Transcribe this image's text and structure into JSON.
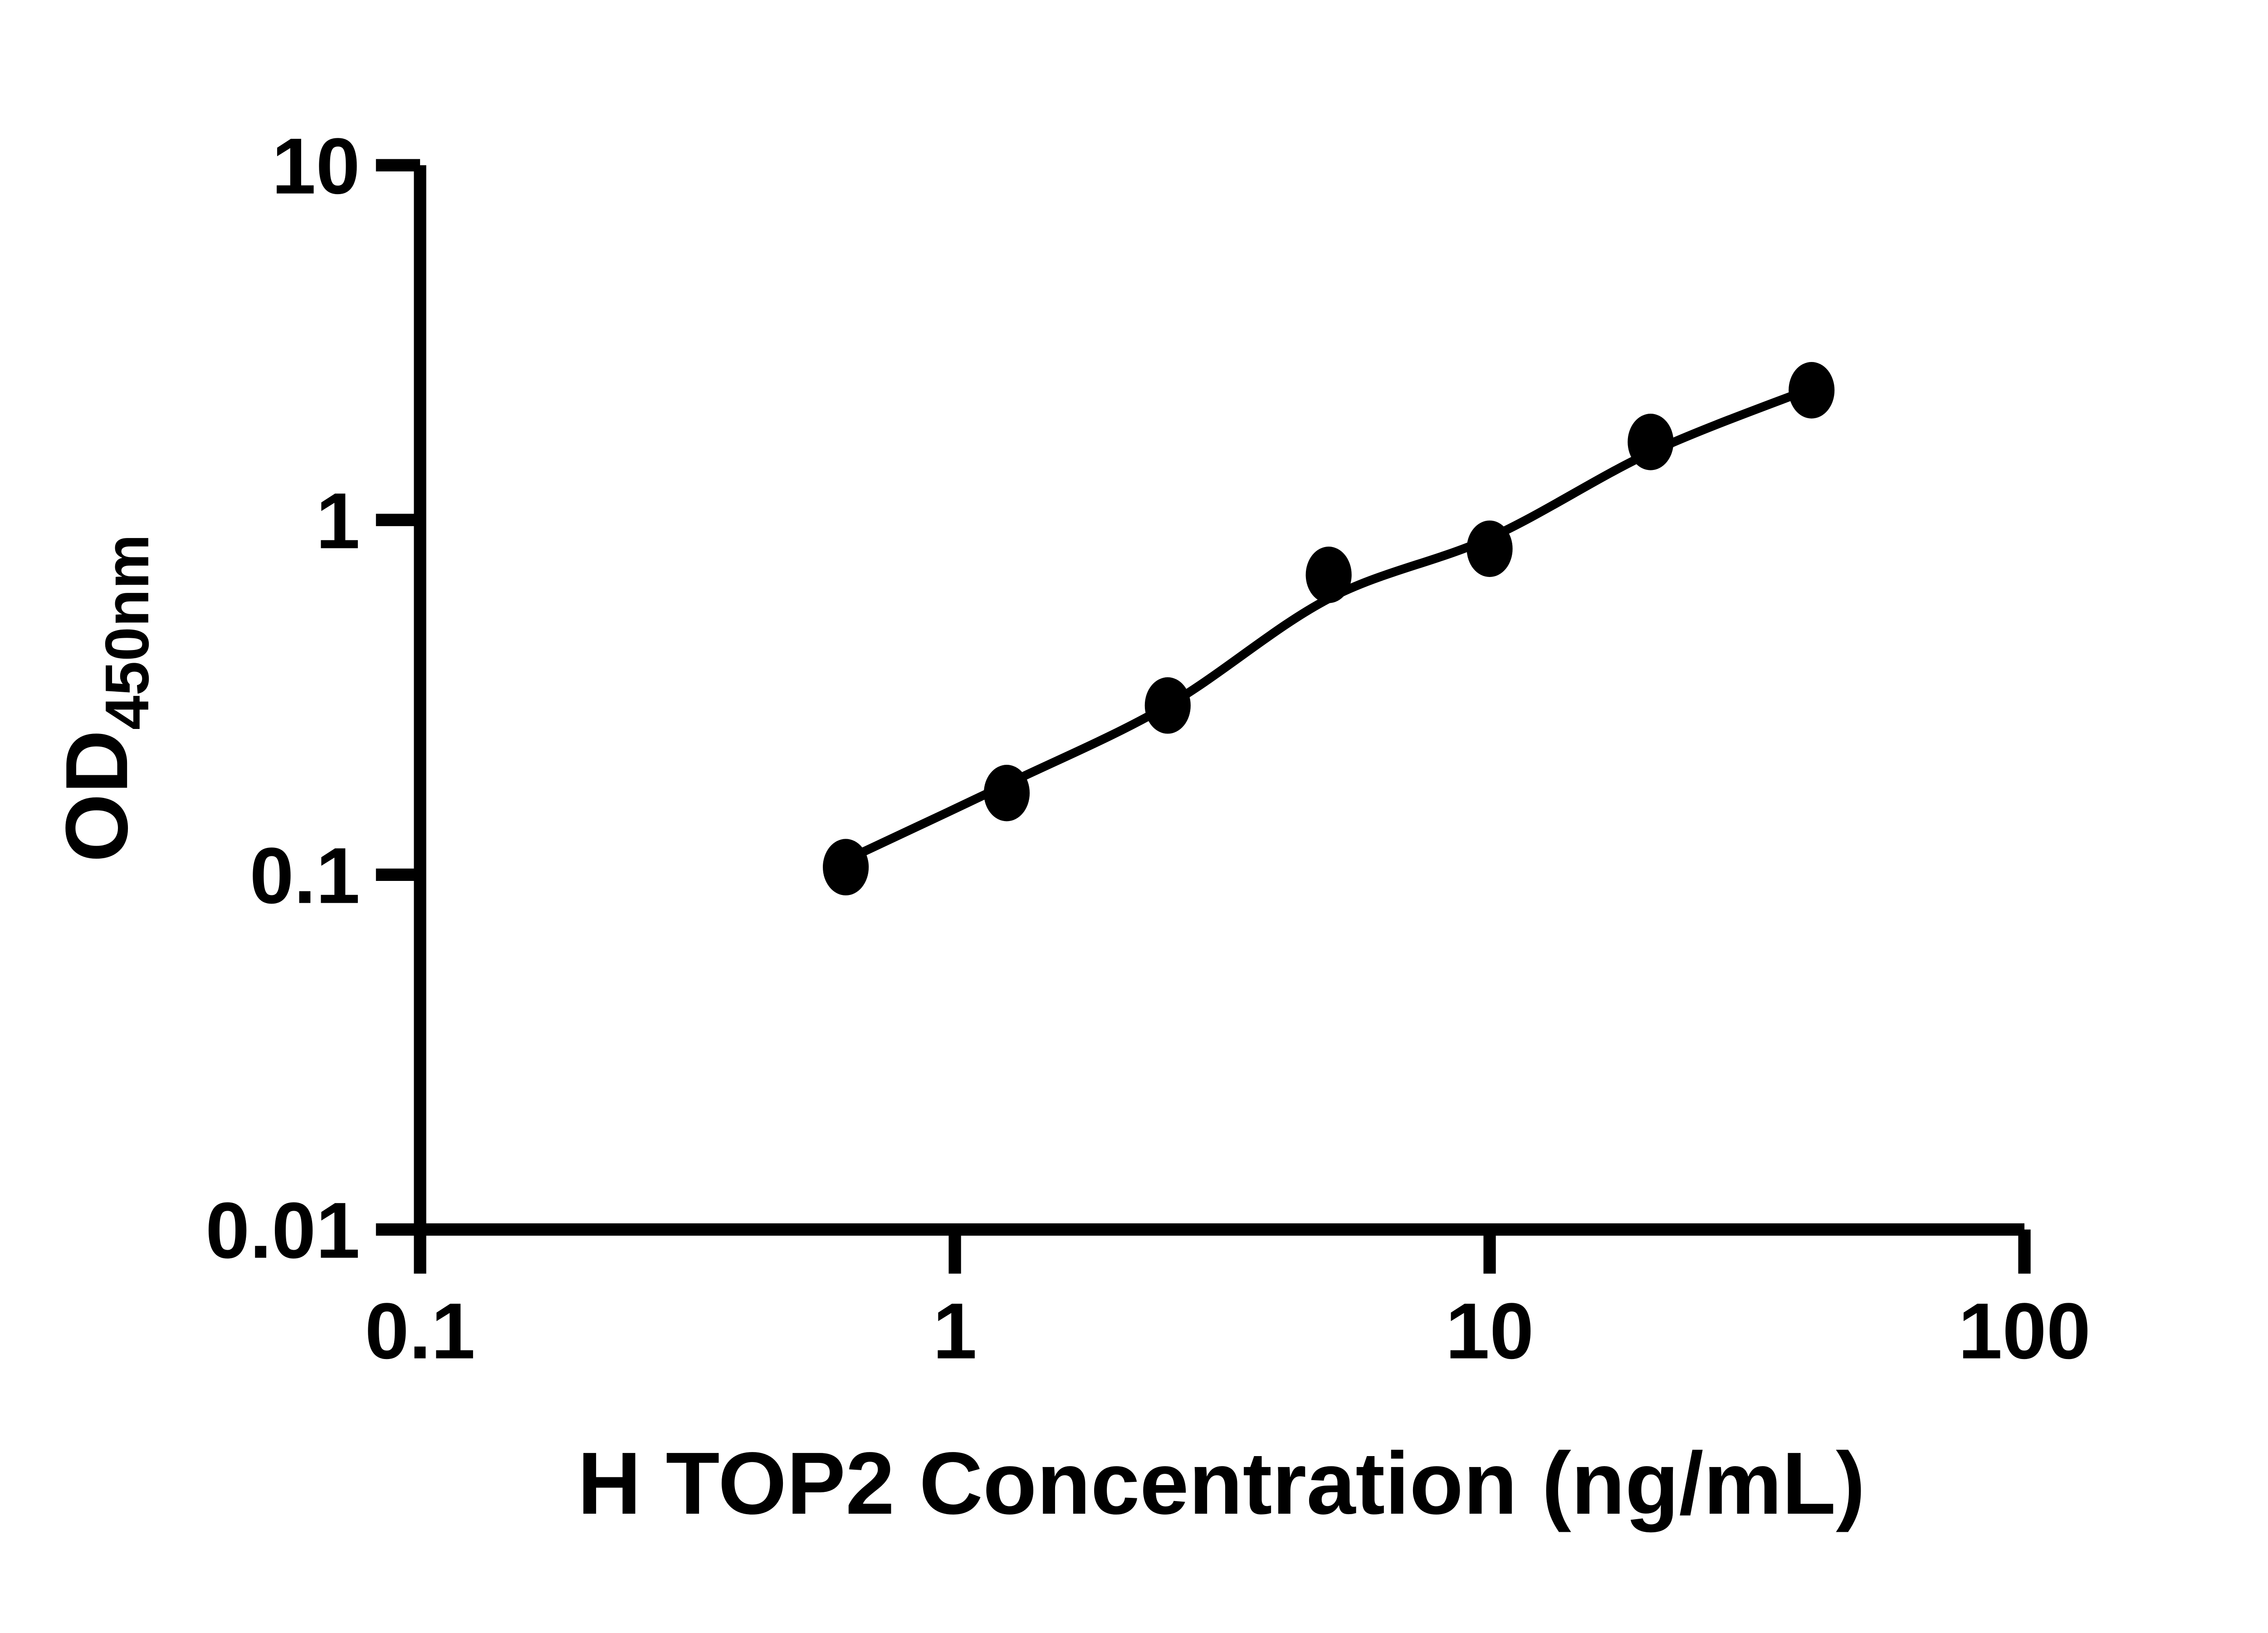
{
  "page": {
    "background": "#ffffff"
  },
  "chart_data": {
    "type": "scatter",
    "title": "",
    "grid": false,
    "legend": false,
    "colors": {
      "ink": "#000000",
      "background": "#ffffff"
    },
    "marker": {
      "shape": "filled-circle",
      "color": "#000000"
    },
    "line_color": "#000000",
    "x_axis": {
      "label": "H TOP2 Concentration (ng/mL)",
      "scale": "log10",
      "range": [
        0.1,
        100
      ],
      "ticks": [
        0.1,
        1,
        10,
        100
      ],
      "tick_labels": [
        "0.1",
        "1",
        "10",
        "100"
      ]
    },
    "y_axis": {
      "label_main": "OD",
      "label_subscript": "450nm",
      "scale": "log10",
      "range": [
        0.01,
        10
      ],
      "ticks": [
        0.01,
        0.1,
        1,
        10
      ],
      "tick_labels": [
        "0.01",
        "0.1",
        "1",
        "10"
      ]
    },
    "points": [
      {
        "x": 0.625,
        "y": 0.105
      },
      {
        "x": 1.25,
        "y": 0.17
      },
      {
        "x": 2.5,
        "y": 0.3
      },
      {
        "x": 5,
        "y": 0.7
      },
      {
        "x": 10,
        "y": 0.83
      },
      {
        "x": 20,
        "y": 1.66
      },
      {
        "x": 40,
        "y": 2.32
      }
    ],
    "fit_curve_points": [
      {
        "x": 0.625,
        "y": 0.11
      },
      {
        "x": 1.25,
        "y": 0.18
      },
      {
        "x": 2.5,
        "y": 0.3
      },
      {
        "x": 5,
        "y": 0.6
      },
      {
        "x": 10,
        "y": 0.89
      },
      {
        "x": 20,
        "y": 1.55
      },
      {
        "x": 40,
        "y": 2.35
      }
    ]
  }
}
